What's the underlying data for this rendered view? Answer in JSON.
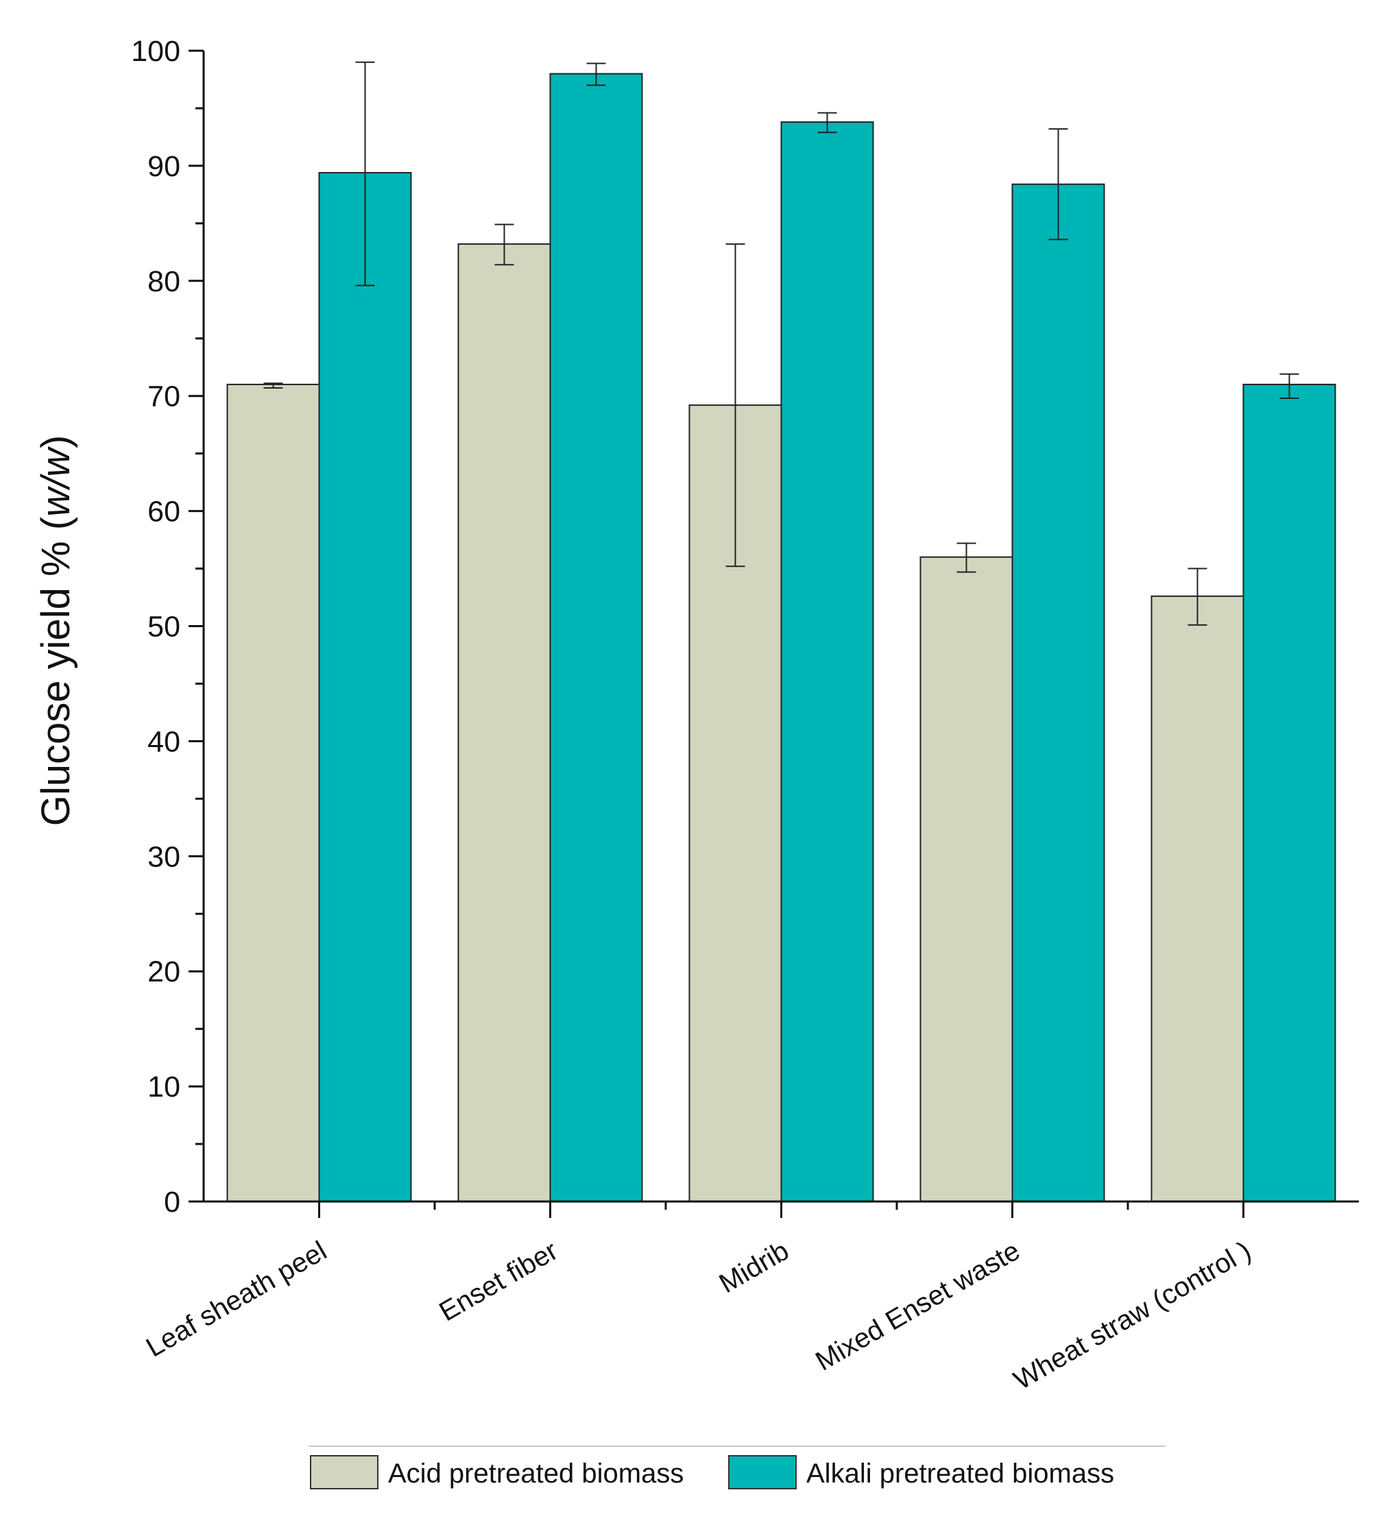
{
  "chart_data": {
    "type": "bar",
    "title": "",
    "xlabel": "",
    "ylabel": "Glucose yield % (w/w)",
    "ylabel_main": "Glucose yield % (",
    "ylabel_unit": "w/w",
    "ylabel_close": ")",
    "ylim": [
      0,
      100
    ],
    "yticks": [
      "0",
      "10",
      "20",
      "30",
      "40",
      "50",
      "60",
      "70",
      "80",
      "90",
      "100"
    ],
    "grid": false,
    "legend_position": "bottom",
    "categories": [
      "Leaf sheath peel",
      "Enset fiber",
      "Midrib",
      "Mixed Enset waste",
      "Wheat straw (control )"
    ],
    "series": [
      {
        "name": "Acid pretreated biomass",
        "color": "#d3d6bf",
        "values": [
          71.0,
          83.2,
          69.2,
          56.0,
          52.6
        ],
        "error_low": [
          70.7,
          81.4,
          55.2,
          54.7,
          50.1
        ],
        "error_high": [
          71.1,
          84.9,
          83.2,
          57.2,
          55.0
        ]
      },
      {
        "name": "Alkali pretreated biomass",
        "color": "#00b5b5",
        "values": [
          89.4,
          98.0,
          93.8,
          88.4,
          71.0
        ],
        "error_low": [
          79.6,
          97.0,
          92.9,
          83.6,
          69.8
        ],
        "error_high": [
          99.0,
          98.9,
          94.6,
          93.2,
          71.9
        ]
      }
    ]
  }
}
